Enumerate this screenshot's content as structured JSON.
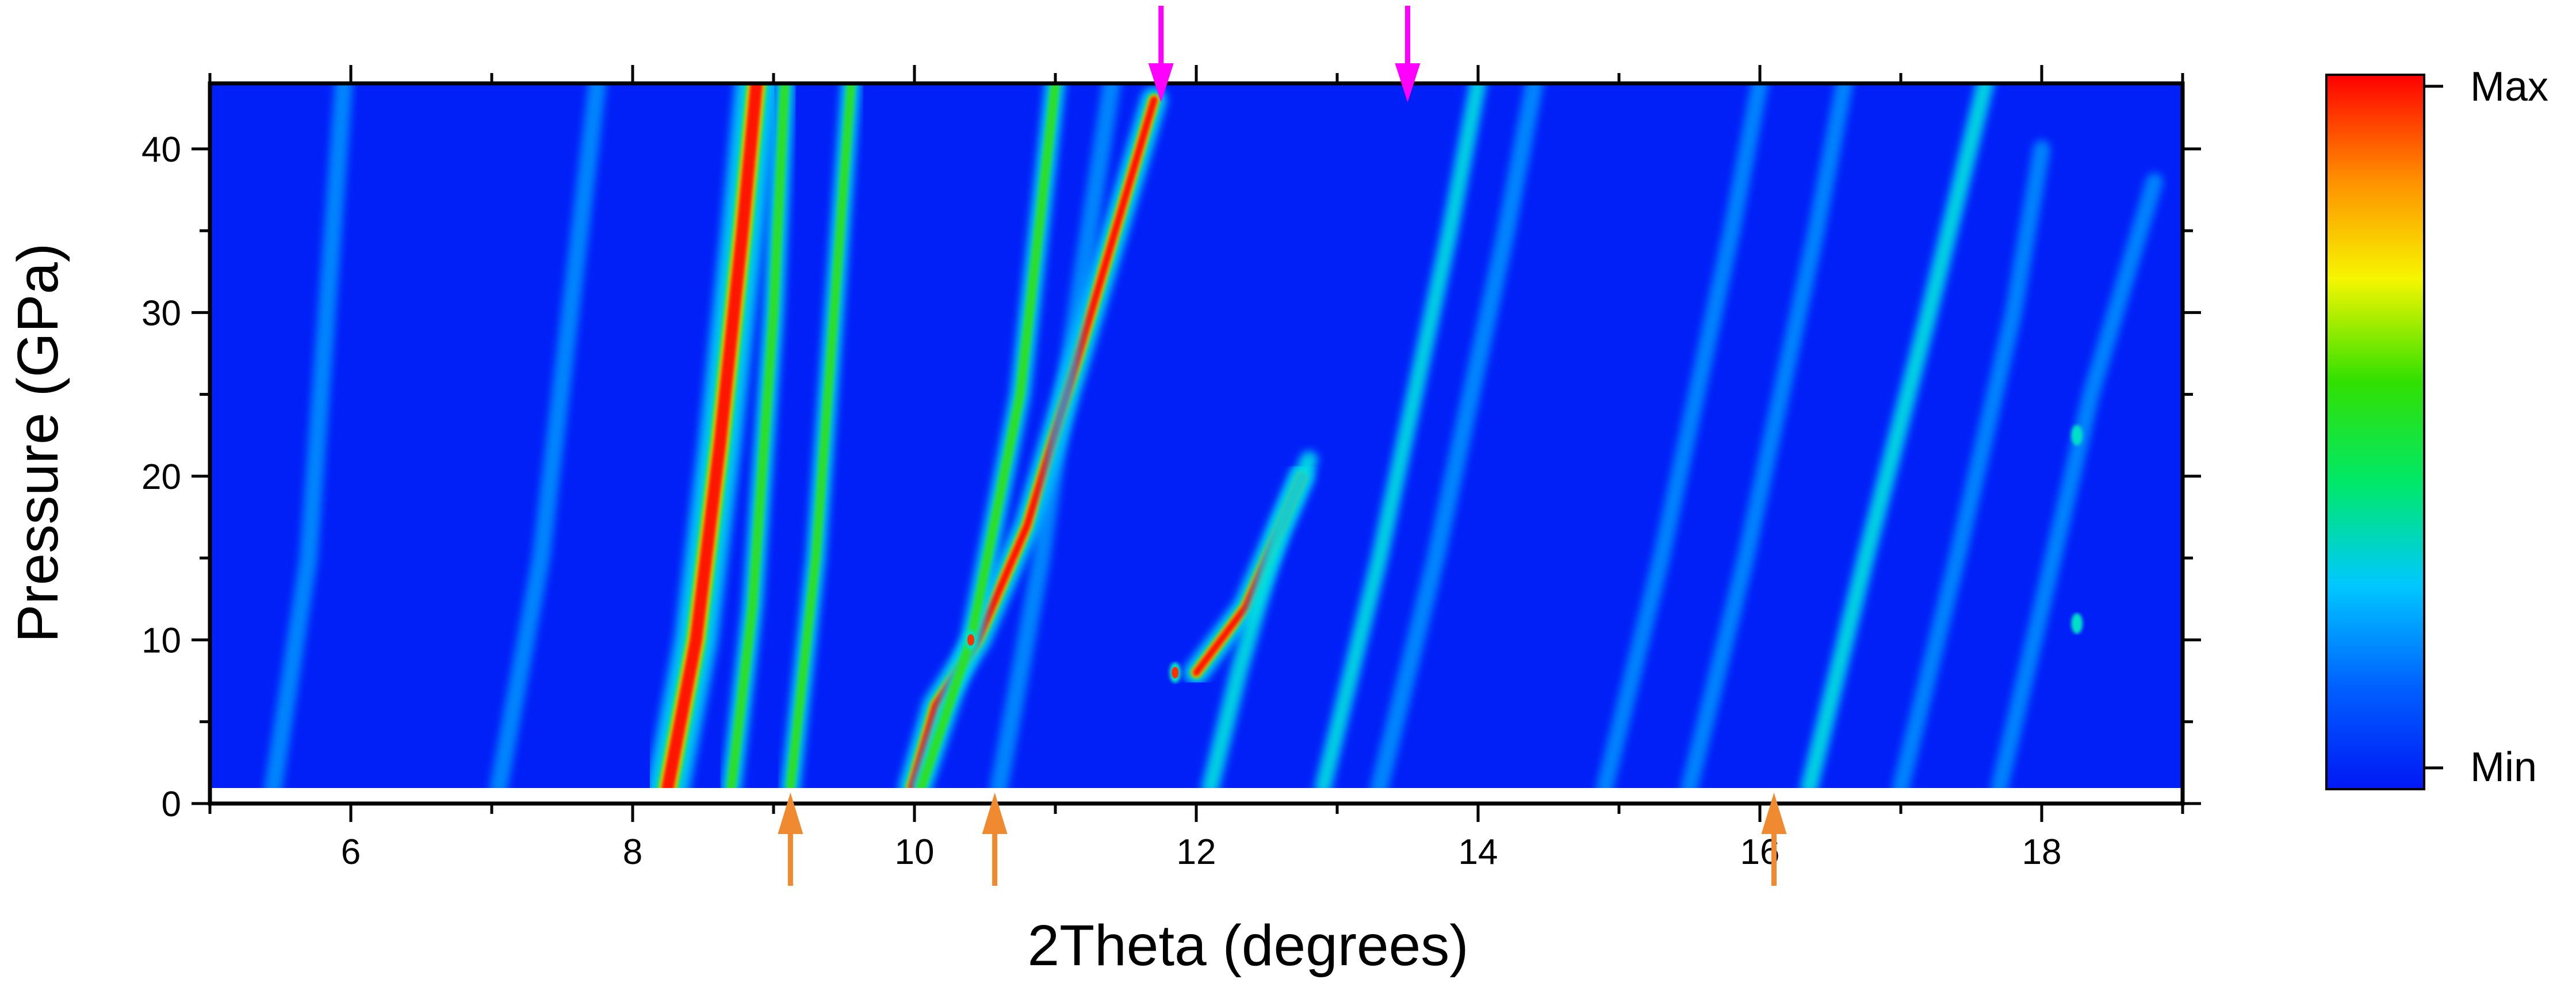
{
  "chart_data": {
    "type": "heatmap",
    "xlabel": "2Theta (degrees)",
    "ylabel": "Pressure (GPa)",
    "xlim": [
      5,
      19
    ],
    "ylim": [
      0,
      44
    ],
    "data_ylim": [
      1,
      44
    ],
    "x_ticks": [
      "6",
      "8",
      "10",
      "12",
      "14",
      "16",
      "18"
    ],
    "y_ticks": [
      "0",
      "10",
      "20",
      "30",
      "40"
    ],
    "colorbar": {
      "max_label": "Max",
      "min_label": "Min",
      "colors": [
        "#0018f5",
        "#0060ff",
        "#00c8ff",
        "#00e86a",
        "#32e000",
        "#f6f600",
        "#ff8c00",
        "#ff0000"
      ]
    },
    "background_color": "#0020f8",
    "lines": [
      {
        "intensity": 0.35,
        "points": [
          [
            5.45,
            1
          ],
          [
            5.7,
            15
          ],
          [
            5.95,
            44
          ]
        ]
      },
      {
        "intensity": 0.35,
        "points": [
          [
            7.05,
            1
          ],
          [
            7.35,
            15
          ],
          [
            7.75,
            44
          ]
        ]
      },
      {
        "intensity": 1.0,
        "width": 1.6,
        "points": [
          [
            8.25,
            1
          ],
          [
            8.45,
            10
          ],
          [
            8.62,
            22
          ],
          [
            8.78,
            35
          ],
          [
            8.88,
            44
          ]
        ]
      },
      {
        "intensity": 0.6,
        "points": [
          [
            8.7,
            1
          ],
          [
            8.85,
            12
          ],
          [
            9.0,
            30
          ],
          [
            9.08,
            44
          ]
        ]
      },
      {
        "intensity": 0.55,
        "points": [
          [
            9.12,
            1
          ],
          [
            9.3,
            15
          ],
          [
            9.55,
            44
          ]
        ]
      },
      {
        "intensity": 0.95,
        "points": [
          [
            9.98,
            1
          ],
          [
            10.15,
            6
          ],
          [
            10.45,
            10
          ],
          [
            10.8,
            17
          ],
          [
            11.15,
            27
          ],
          [
            11.7,
            43
          ]
        ]
      },
      {
        "intensity": 0.6,
        "points": [
          [
            10.05,
            1
          ],
          [
            10.4,
            10
          ],
          [
            10.75,
            25
          ],
          [
            11.0,
            44
          ]
        ]
      },
      {
        "intensity": 0.35,
        "points": [
          [
            10.6,
            1
          ],
          [
            10.9,
            15
          ],
          [
            11.15,
            30
          ],
          [
            11.4,
            44
          ]
        ]
      },
      {
        "intensity": 0.9,
        "points": [
          [
            12.0,
            8
          ],
          [
            12.35,
            12
          ],
          [
            12.75,
            20
          ]
        ]
      },
      {
        "intensity": 0.45,
        "points": [
          [
            12.1,
            1
          ],
          [
            12.3,
            8
          ],
          [
            12.6,
            17
          ],
          [
            12.8,
            21
          ]
        ]
      },
      {
        "intensity": 0.4,
        "points": [
          [
            12.9,
            1
          ],
          [
            13.3,
            15
          ],
          [
            13.8,
            35
          ],
          [
            14.0,
            44
          ]
        ]
      },
      {
        "intensity": 0.35,
        "points": [
          [
            13.3,
            1
          ],
          [
            13.7,
            15
          ],
          [
            14.2,
            35
          ],
          [
            14.4,
            44
          ]
        ]
      },
      {
        "intensity": 0.3,
        "points": [
          [
            14.9,
            1
          ],
          [
            15.3,
            15
          ],
          [
            15.8,
            35
          ],
          [
            16.0,
            44
          ]
        ]
      },
      {
        "intensity": 0.3,
        "points": [
          [
            15.5,
            1
          ],
          [
            15.9,
            15
          ],
          [
            16.4,
            35
          ],
          [
            16.6,
            44
          ]
        ]
      },
      {
        "intensity": 0.45,
        "points": [
          [
            16.35,
            1
          ],
          [
            16.75,
            15
          ],
          [
            17.2,
            30
          ],
          [
            17.6,
            44
          ]
        ]
      },
      {
        "intensity": 0.3,
        "points": [
          [
            17.0,
            1
          ],
          [
            17.4,
            15
          ],
          [
            17.8,
            30
          ],
          [
            18.0,
            40
          ]
        ]
      },
      {
        "intensity": 0.3,
        "points": [
          [
            17.7,
            1
          ],
          [
            18.0,
            12
          ],
          [
            18.35,
            25
          ],
          [
            18.8,
            38
          ]
        ]
      }
    ],
    "dots": [
      {
        "x": 11.85,
        "y": 8,
        "intensity": 0.75
      },
      {
        "x": 10.4,
        "y": 10,
        "intensity": 0.75
      },
      {
        "x": 18.25,
        "y": 22.5,
        "intensity": 0.5
      },
      {
        "x": 18.25,
        "y": 11,
        "intensity": 0.5
      }
    ],
    "annotations": {
      "top_arrows": {
        "color": "#ff00ff",
        "x": [
          11.75,
          13.5
        ]
      },
      "bottom_arrows": {
        "color": "#f08a30",
        "x": [
          9.12,
          10.57,
          16.1
        ]
      }
    }
  }
}
